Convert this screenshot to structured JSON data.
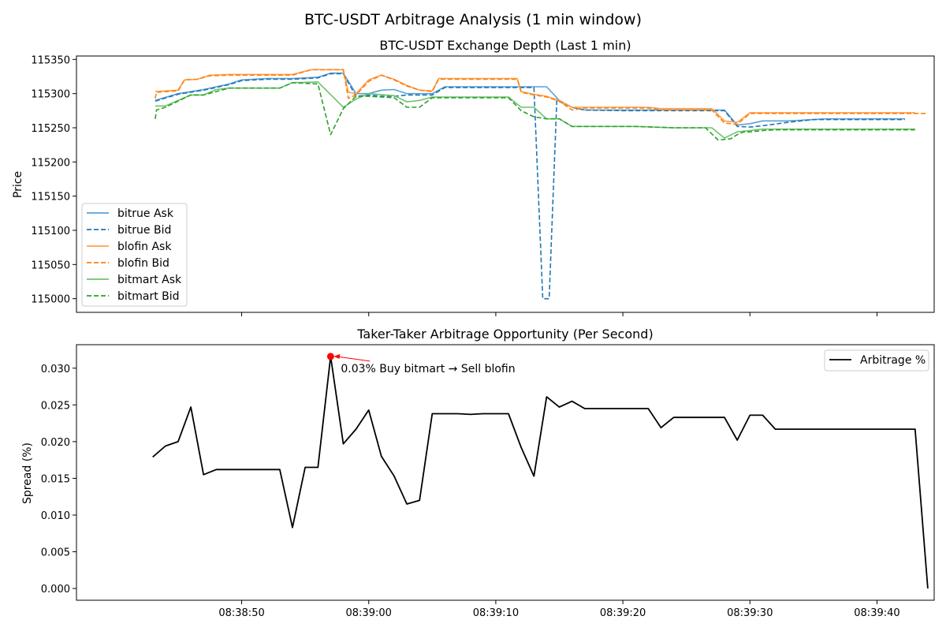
{
  "figure": {
    "suptitle": "BTC-USDT Arbitrage Analysis (1 min window)"
  },
  "x_ticks": [
    "08:38:50",
    "08:39:00",
    "08:39:10",
    "08:39:20",
    "08:39:30",
    "08:39:40"
  ],
  "chart_data": [
    {
      "type": "line",
      "title": "BTC-USDT Exchange Depth (Last 1 min)",
      "xlabel": "",
      "ylabel": "Price",
      "x_unit": "seconds after 08:38:40",
      "xlim": [
        37.0,
        104.5
      ],
      "ylim": [
        114980,
        115355
      ],
      "yticks": [
        115000,
        115050,
        115100,
        115150,
        115200,
        115250,
        115300,
        115350
      ],
      "grid": false,
      "legend_position": "lower-left",
      "series": [
        {
          "name": "bitrue Ask",
          "color": "#5aa0d8",
          "dash": "solid",
          "points": [
            [
              43.2,
              115290
            ],
            [
              45,
              115300
            ],
            [
              47,
              115306
            ],
            [
              49,
              115314
            ],
            [
              50,
              115320
            ],
            [
              52,
              115322
            ],
            [
              54,
              115322
            ],
            [
              56,
              115324
            ],
            [
              57,
              115330
            ],
            [
              58,
              115330
            ],
            [
              59,
              115300
            ],
            [
              60,
              115300
            ],
            [
              61,
              115305
            ],
            [
              62,
              115306
            ],
            [
              63,
              115300
            ],
            [
              64,
              115300
            ],
            [
              65,
              115300
            ],
            [
              66,
              115310
            ],
            [
              70,
              115310
            ],
            [
              71,
              115310
            ],
            [
              72,
              115310
            ],
            [
              74,
              115310
            ],
            [
              75,
              115290
            ],
            [
              76,
              115280
            ],
            [
              77,
              115276
            ],
            [
              80,
              115276
            ],
            [
              86,
              115276
            ],
            [
              88,
              115276
            ],
            [
              89,
              115254
            ],
            [
              90,
              115256
            ],
            [
              91,
              115260
            ],
            [
              93,
              115260
            ],
            [
              96,
              115263
            ],
            [
              102.2,
              115263
            ]
          ]
        },
        {
          "name": "bitrue Bid",
          "color": "#1f77b4",
          "dash": "dashed",
          "points": [
            [
              43.2,
              115289
            ],
            [
              45,
              115299
            ],
            [
              47,
              115305
            ],
            [
              49,
              115313
            ],
            [
              50,
              115319
            ],
            [
              52,
              115321
            ],
            [
              54,
              115321
            ],
            [
              56,
              115323
            ],
            [
              57,
              115329
            ],
            [
              58,
              115329
            ],
            [
              59,
              115296
            ],
            [
              60,
              115298
            ],
            [
              61,
              115296
            ],
            [
              62,
              115296
            ],
            [
              63,
              115298
            ],
            [
              64,
              115298
            ],
            [
              65,
              115298
            ],
            [
              66,
              115309
            ],
            [
              70,
              115309
            ],
            [
              71,
              115309
            ],
            [
              72,
              115309
            ],
            [
              73,
              115309
            ],
            [
              73.7,
              115000
            ],
            [
              74.2,
              115000
            ],
            [
              74.8,
              115290
            ],
            [
              76,
              115280
            ],
            [
              77,
              115276
            ],
            [
              80,
              115275
            ],
            [
              86,
              115275
            ],
            [
              88,
              115275
            ],
            [
              89,
              115252
            ],
            [
              90,
              115251
            ],
            [
              91,
              115253
            ],
            [
              93,
              115258
            ],
            [
              95,
              115262
            ],
            [
              102.2,
              115262
            ]
          ]
        },
        {
          "name": "blofin Ask",
          "color": "#ffa04d",
          "dash": "solid",
          "points": [
            [
              43.2,
              115303
            ],
            [
              45,
              115305
            ],
            [
              45.5,
              115320
            ],
            [
              46.5,
              115321
            ],
            [
              47.5,
              115327
            ],
            [
              49,
              115328
            ],
            [
              52,
              115328
            ],
            [
              54,
              115328
            ],
            [
              55.5,
              115335
            ],
            [
              58,
              115335
            ],
            [
              58.4,
              115302
            ],
            [
              59,
              115300
            ],
            [
              60,
              115320
            ],
            [
              61,
              115327
            ],
            [
              62,
              115321
            ],
            [
              63,
              115312
            ],
            [
              64,
              115305
            ],
            [
              65,
              115304
            ],
            [
              65.5,
              115322
            ],
            [
              70,
              115322
            ],
            [
              71.7,
              115322
            ],
            [
              72,
              115303
            ],
            [
              73,
              115299
            ],
            [
              74,
              115296
            ],
            [
              75,
              115290
            ],
            [
              76,
              115280
            ],
            [
              77,
              115280
            ],
            [
              82,
              115280
            ],
            [
              83,
              115278
            ],
            [
              87,
              115278
            ],
            [
              88,
              115260
            ],
            [
              89,
              115258
            ],
            [
              90,
              115272
            ],
            [
              103,
              115272
            ]
          ]
        },
        {
          "name": "blofin Bid",
          "color": "#ff7f0e",
          "dash": "dashed",
          "points": [
            [
              43.2,
              115293
            ],
            [
              43.3,
              115302
            ],
            [
              45,
              115304
            ],
            [
              45.5,
              115320
            ],
            [
              46.5,
              115321
            ],
            [
              47.5,
              115326
            ],
            [
              49,
              115327
            ],
            [
              52,
              115327
            ],
            [
              54,
              115327
            ],
            [
              55.5,
              115335
            ],
            [
              58,
              115335
            ],
            [
              58.4,
              115293
            ],
            [
              59,
              115298
            ],
            [
              60,
              115318
            ],
            [
              61,
              115327
            ],
            [
              62,
              115320
            ],
            [
              63,
              115311
            ],
            [
              64,
              115305
            ],
            [
              65,
              115303
            ],
            [
              65.5,
              115321
            ],
            [
              70,
              115321
            ],
            [
              71.7,
              115321
            ],
            [
              72,
              115302
            ],
            [
              73,
              115298
            ],
            [
              74,
              115295
            ],
            [
              75,
              115289
            ],
            [
              76,
              115276
            ],
            [
              77,
              115279
            ],
            [
              82,
              115279
            ],
            [
              83,
              115276
            ],
            [
              87,
              115276
            ],
            [
              88,
              115257
            ],
            [
              89,
              115255
            ],
            [
              90,
              115271
            ],
            [
              104,
              115271
            ]
          ]
        },
        {
          "name": "bitmart Ask",
          "color": "#6cc46c",
          "dash": "solid",
          "points": [
            [
              43.2,
              115282
            ],
            [
              44,
              115282
            ],
            [
              46,
              115298
            ],
            [
              47,
              115298
            ],
            [
              48,
              115306
            ],
            [
              49,
              115308
            ],
            [
              53,
              115308
            ],
            [
              54,
              115316
            ],
            [
              56,
              115317
            ],
            [
              58,
              115280
            ],
            [
              59,
              115292
            ],
            [
              60,
              115300
            ],
            [
              62,
              115297
            ],
            [
              63,
              115288
            ],
            [
              64,
              115290
            ],
            [
              65,
              115295
            ],
            [
              71,
              115295
            ],
            [
              72,
              115280
            ],
            [
              73,
              115280
            ],
            [
              74,
              115263
            ],
            [
              75,
              115263
            ],
            [
              76,
              115252
            ],
            [
              77,
              115252
            ],
            [
              81,
              115252
            ],
            [
              84,
              115250
            ],
            [
              87,
              115250
            ],
            [
              88,
              115235
            ],
            [
              89,
              115244
            ],
            [
              90,
              115246
            ],
            [
              91,
              115248
            ],
            [
              103,
              115248
            ]
          ]
        },
        {
          "name": "bitmart Bid",
          "color": "#2ca02c",
          "dash": "dashed",
          "points": [
            [
              43.2,
              115263
            ],
            [
              43.3,
              115276
            ],
            [
              44,
              115280
            ],
            [
              46,
              115298
            ],
            [
              47,
              115298
            ],
            [
              48,
              115303
            ],
            [
              49,
              115308
            ],
            [
              53,
              115308
            ],
            [
              54,
              115316
            ],
            [
              56,
              115314
            ],
            [
              57,
              115240
            ],
            [
              58,
              115278
            ],
            [
              59,
              115296
            ],
            [
              60,
              115296
            ],
            [
              61,
              115295
            ],
            [
              62,
              115294
            ],
            [
              63,
              115280
            ],
            [
              64,
              115280
            ],
            [
              65,
              115294
            ],
            [
              71,
              115294
            ],
            [
              72,
              115275
            ],
            [
              73,
              115266
            ],
            [
              74,
              115263
            ],
            [
              75,
              115263
            ],
            [
              76,
              115252
            ],
            [
              77,
              115252
            ],
            [
              81,
              115252
            ],
            [
              84,
              115250
            ],
            [
              86.5,
              115250
            ],
            [
              87.5,
              115232
            ],
            [
              88.5,
              115234
            ],
            [
              89,
              115240
            ],
            [
              89.5,
              115244
            ],
            [
              90,
              115244
            ],
            [
              91,
              115246
            ],
            [
              92,
              115247
            ],
            [
              103,
              115247
            ]
          ]
        }
      ]
    },
    {
      "type": "line",
      "title": "Taker-Taker Arbitrage Opportunity (Per Second)",
      "xlabel": "",
      "ylabel": "Spread (%)",
      "x_unit": "seconds after 08:38:40",
      "xlim": [
        37.0,
        104.5
      ],
      "ylim": [
        -0.0016,
        0.0332
      ],
      "yticks": [
        "0.000",
        "0.005",
        "0.010",
        "0.015",
        "0.020",
        "0.025",
        "0.030"
      ],
      "yticks_values": [
        0,
        0.005,
        0.01,
        0.015,
        0.02,
        0.025,
        0.03
      ],
      "grid": false,
      "legend_position": "top-right",
      "series": [
        {
          "name": "Arbitrage %",
          "color": "#000000",
          "points": [
            [
              43,
              0.0179
            ],
            [
              44,
              0.0194
            ],
            [
              45,
              0.02
            ],
            [
              46,
              0.0247
            ],
            [
              47,
              0.0155
            ],
            [
              48,
              0.0162
            ],
            [
              53,
              0.0162
            ],
            [
              54,
              0.0083
            ],
            [
              55,
              0.0165
            ],
            [
              56,
              0.0165
            ],
            [
              57,
              0.0316
            ],
            [
              58,
              0.0197
            ],
            [
              59,
              0.0217
            ],
            [
              60,
              0.0243
            ],
            [
              61,
              0.018
            ],
            [
              62,
              0.0153
            ],
            [
              63,
              0.0115
            ],
            [
              64,
              0.012
            ],
            [
              65,
              0.0238
            ],
            [
              67,
              0.0238
            ],
            [
              68,
              0.0237
            ],
            [
              69,
              0.0238
            ],
            [
              71,
              0.0238
            ],
            [
              72,
              0.0192
            ],
            [
              73,
              0.0153
            ],
            [
              74,
              0.0261
            ],
            [
              75,
              0.0247
            ],
            [
              76,
              0.0255
            ],
            [
              77,
              0.0245
            ],
            [
              82,
              0.0245
            ],
            [
              83,
              0.0219
            ],
            [
              84,
              0.0233
            ],
            [
              88,
              0.0233
            ],
            [
              89,
              0.0202
            ],
            [
              90,
              0.0236
            ],
            [
              91,
              0.0236
            ],
            [
              92,
              0.0217
            ],
            [
              103,
              0.0217
            ],
            [
              104,
              0.0
            ]
          ]
        }
      ],
      "annotation": {
        "text": "0.03% Buy bitmart → Sell blofin",
        "x": 57,
        "y": 0.0316,
        "marker_color": "#ff0000"
      }
    }
  ]
}
